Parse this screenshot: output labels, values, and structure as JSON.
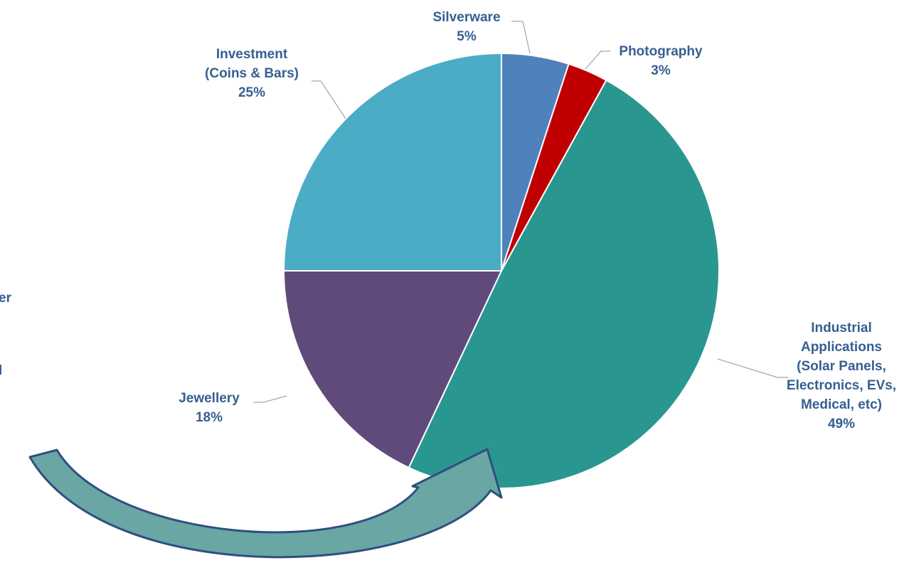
{
  "chart_data": {
    "type": "pie",
    "start_angle_deg": 0,
    "direction": "clockwise",
    "slices": [
      {
        "label": [
          "Silverware"
        ],
        "value": 5,
        "value_label": "5%",
        "color": "#4F81BD"
      },
      {
        "label": [
          "Photography"
        ],
        "value": 3,
        "value_label": "3%",
        "color": "#C00000"
      },
      {
        "label": [
          "Industrial",
          "Applications",
          "(Solar Panels,",
          "Electronics, EVs,",
          "Medical, etc)"
        ],
        "value": 49,
        "value_label": "49%",
        "color": "#2A9690"
      },
      {
        "label": [
          "Jewellery"
        ],
        "value": 18,
        "value_label": "18%",
        "color": "#604A7B"
      },
      {
        "label": [
          "Investment",
          "(Coins & Bars)"
        ],
        "value": 25,
        "value_label": "25%",
        "color": "#4BACC6"
      }
    ],
    "label_color": "#365F91",
    "leader_color": "#A6A6A6",
    "legend": "none"
  },
  "left_fragments": [
    "er",
    "l"
  ],
  "arrow": {
    "fill": "#6AA6A4",
    "stroke": "#2F4F7F"
  }
}
